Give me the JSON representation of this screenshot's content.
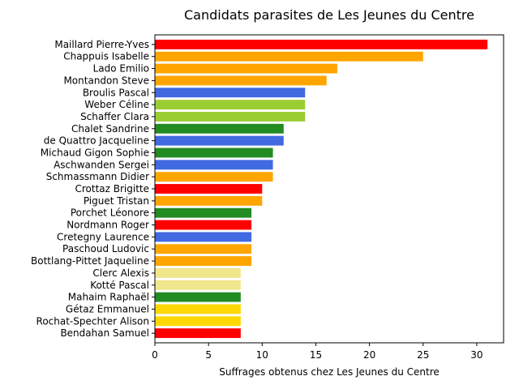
{
  "chart_data": {
    "type": "bar",
    "orientation": "horizontal",
    "title": "Candidats parasites de Les Jeunes du Centre",
    "xlabel": "Suffrages obtenus chez Les Jeunes du Centre",
    "ylabel": "",
    "xlim": [
      0,
      32.5
    ],
    "xticks": [
      0,
      5,
      10,
      15,
      20,
      25,
      30
    ],
    "grid": false,
    "categories": [
      "Maillard Pierre-Yves",
      "Chappuis Isabelle",
      "Lado Emilio",
      "Montandon Steve",
      "Broulis Pascal",
      "Weber Céline",
      "Schaffer Clara",
      "Chalet Sandrine",
      "de Quattro Jacqueline",
      "Michaud Gigon Sophie",
      "Aschwanden Sergei",
      "Schmassmann Didier",
      "Crottaz Brigitte",
      "Piguet Tristan",
      "Porchet Léonore",
      "Nordmann Roger",
      "Cretegny Laurence",
      "Paschoud Ludovic",
      "Bottlang-Pittet Jaqueline",
      "Clerc Alexis",
      "Kotté Pascal",
      "Mahaim Raphaël",
      "Gétaz Emmanuel",
      "Rochat-Spechter Alison",
      "Bendahan Samuel"
    ],
    "values": [
      31,
      25,
      17,
      16,
      14,
      14,
      14,
      12,
      12,
      11,
      11,
      11,
      10,
      10,
      9,
      9,
      9,
      9,
      9,
      8,
      8,
      8,
      8,
      8,
      8
    ],
    "colors": [
      "#ff0000",
      "#ffa500",
      "#ffa500",
      "#ffa500",
      "#4169e1",
      "#9acd32",
      "#9acd32",
      "#228b22",
      "#4169e1",
      "#228b22",
      "#4169e1",
      "#ffa500",
      "#ff0000",
      "#ffa500",
      "#228b22",
      "#ff0000",
      "#4169e1",
      "#ffa500",
      "#ffa500",
      "#f0e68c",
      "#f0e68c",
      "#228b22",
      "#ffd700",
      "#ffd700",
      "#ff0000"
    ]
  }
}
